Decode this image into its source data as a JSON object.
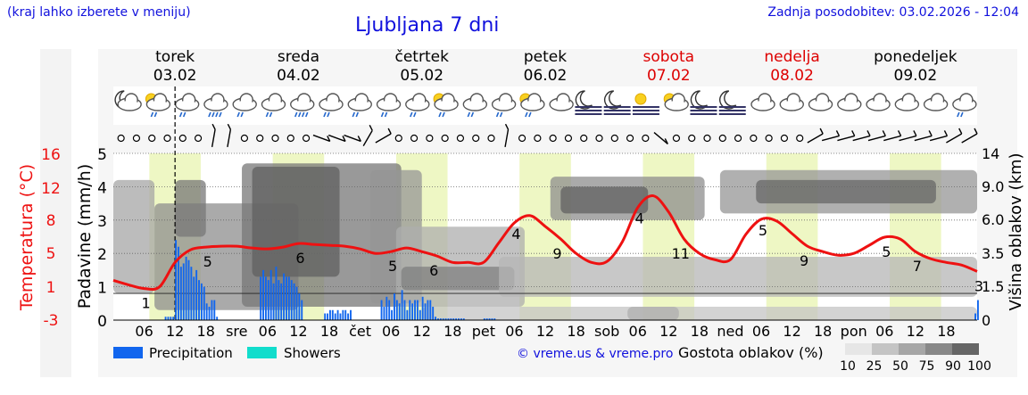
{
  "header": {
    "region_hint": "(kraj lahko izberete v meniju)",
    "title": "Ljubljana 7 dni",
    "updated": "Zadnja posodobitev: 03.02.2026 - 12:04"
  },
  "days": [
    {
      "name": "torek",
      "date": "03.02",
      "weekend": false
    },
    {
      "name": "sreda",
      "date": "04.02",
      "weekend": false
    },
    {
      "name": "četrtek",
      "date": "05.02",
      "weekend": false
    },
    {
      "name": "petek",
      "date": "06.02",
      "weekend": false
    },
    {
      "name": "sobota",
      "date": "07.02",
      "weekend": true
    },
    {
      "name": "nedelja",
      "date": "08.02",
      "weekend": true
    },
    {
      "name": "ponedeljek",
      "date": "09.02",
      "weekend": false
    }
  ],
  "weather_icons": [
    "moon-cloud",
    "sun-cloud-rain",
    "cloud-rain",
    "cloud-heavy-rain",
    "cloud-rain",
    "cloud-rain",
    "cloud-heavy-rain",
    "cloud-rain",
    "cloud-rain",
    "cloud-rain",
    "cloud-rain",
    "sun-cloud-rain",
    "cloud-rain",
    "cloud-rain",
    "sun-cloud-rain",
    "cloud",
    "moon-fog",
    "moon-fog",
    "sun-fog",
    "sun-cloud",
    "moon-fog",
    "moon-fog",
    "cloud",
    "cloud",
    "cloud",
    "cloud",
    "cloud",
    "cloud",
    "cloud",
    "cloud-rain"
  ],
  "wind_barbs": [
    "calm",
    "calm",
    "calm",
    "calm",
    "calm",
    "calm",
    "n",
    "n",
    "calm",
    "calm",
    "calm",
    "calm",
    "calm",
    "wsw",
    "wsw",
    "wsw",
    "nnw",
    "nw",
    "calm",
    "calm",
    "calm",
    "calm",
    "calm",
    "calm",
    "calm",
    "n",
    "calm",
    "calm",
    "calm",
    "calm",
    "calm",
    "calm",
    "calm",
    "calm",
    "calm",
    "sw",
    "calm",
    "calm",
    "calm",
    "calm",
    "calm",
    "calm",
    "calm",
    "calm",
    "calm",
    "nw",
    "w",
    "w",
    "w",
    "w",
    "w",
    "w",
    "w",
    "w",
    "nw",
    "nw"
  ],
  "colors": {
    "temperature_line": "#ee1111",
    "precipitation": "#1166ee",
    "showers": "#11ddcc",
    "weekend_text": "#dd0000",
    "title_text": "#1111dd",
    "daytime_band": "#eef7c4"
  },
  "legend": {
    "precip_label": "Precipitation",
    "showers_label": "Showers",
    "credit": "© vreme.us & vreme.pro",
    "cloud_label": "Gostota oblakov (%)",
    "cloud_ticks": [
      "10",
      "25",
      "50",
      "75",
      "90",
      "100"
    ]
  },
  "chart_data": {
    "type": "line",
    "x_unit": "hours from 03.02 00:00",
    "x_ticks": [
      "06",
      "12",
      "18",
      "sre",
      "06",
      "12",
      "18",
      "čet",
      "06",
      "12",
      "18",
      "pet",
      "06",
      "12",
      "18",
      "sob",
      "06",
      "12",
      "18",
      "ned",
      "06",
      "12",
      "18",
      "pon",
      "06",
      "12",
      "18"
    ],
    "y_left_outer_label": "Temperatura (°C)",
    "y_left_outer_ticks": [
      "16",
      "12",
      "8",
      "5",
      "1",
      "-3"
    ],
    "y_left_label": "Padavine (mm/h)",
    "y_left_ticks": [
      "0",
      "1",
      "2",
      "3",
      "4",
      "5"
    ],
    "y_left_range": [
      0,
      5
    ],
    "y_right_label": "Višina oblakov (km)",
    "y_right_ticks": [
      "0",
      "1.5",
      "3.5",
      "6.0",
      "9.0",
      "14"
    ],
    "now_marker_hour": 12,
    "series": [
      {
        "name": "Temperatura (°C)",
        "x": [
          0,
          3,
          6,
          9,
          12,
          15,
          18,
          21,
          24,
          27,
          30,
          33,
          36,
          39,
          42,
          45,
          48,
          51,
          54,
          57,
          60,
          63,
          66,
          69,
          72,
          75,
          78,
          81,
          84,
          87,
          90,
          93,
          96,
          99,
          102,
          105,
          108,
          111,
          114,
          117,
          120,
          123,
          126,
          129,
          132,
          135,
          138,
          141,
          144,
          147,
          150,
          153,
          156,
          159,
          162,
          165,
          168
        ],
        "values": [
          2.0,
          1.5,
          1.1,
          1.3,
          4.0,
          5.4,
          5.7,
          5.8,
          5.8,
          5.6,
          5.5,
          5.7,
          6.1,
          6.0,
          5.9,
          5.8,
          5.5,
          5.0,
          5.2,
          5.6,
          5.2,
          4.7,
          4.0,
          4.0,
          4.0,
          6.2,
          8.4,
          9.2,
          8.0,
          6.6,
          5.0,
          4.0,
          4.1,
          6.3,
          10.1,
          11.4,
          9.6,
          6.6,
          5.0,
          4.3,
          4.3,
          7.1,
          8.8,
          8.6,
          7.2,
          5.8,
          5.2,
          4.8,
          5.0,
          5.9,
          6.8,
          6.6,
          5.2,
          4.4,
          4.0,
          3.7,
          3.0
        ]
      },
      {
        "name": "Precipitation",
        "x": [
          10,
          10.5,
          11,
          11.5,
          12,
          12.5,
          13,
          13.5,
          14,
          14.5,
          15,
          15.5,
          16,
          16.5,
          17,
          17.5,
          18,
          18.5,
          19,
          19.5,
          20,
          20.5,
          28.5,
          29,
          29.5,
          30,
          30.5,
          31,
          31.5,
          32,
          32.5,
          33,
          33.5,
          34,
          34.5,
          35,
          35.5,
          36,
          36.5,
          41,
          41.5,
          42,
          42.5,
          43,
          43.5,
          44,
          44.5,
          45,
          45.5,
          46,
          52,
          52.5,
          53,
          53.5,
          54,
          54.5,
          55,
          55.5,
          56,
          56.5,
          57,
          57.5,
          58,
          58.5,
          59,
          59.5,
          60,
          60.5,
          61,
          61.5,
          62,
          62.5,
          63,
          63.5,
          64,
          64.5,
          65,
          65.5,
          66,
          66.5,
          67,
          67.5,
          68,
          72,
          72.5,
          73,
          73.5,
          74,
          167.5,
          168
        ],
        "values": [
          0.1,
          0.1,
          0.1,
          0.1,
          2.4,
          2.2,
          1.6,
          1.7,
          1.9,
          1.8,
          1.6,
          1.3,
          1.5,
          1.2,
          1.1,
          1.0,
          0.5,
          0.4,
          0.6,
          0.6,
          0.1,
          0.0,
          1.3,
          1.5,
          1.3,
          1.2,
          1.5,
          1.1,
          1.6,
          1.2,
          1.1,
          1.4,
          1.3,
          1.3,
          1.2,
          1.1,
          1.0,
          0.8,
          0.6,
          0.2,
          0.2,
          0.3,
          0.3,
          0.2,
          0.3,
          0.2,
          0.3,
          0.3,
          0.2,
          0.3,
          0.6,
          0.4,
          0.7,
          0.6,
          0.3,
          0.8,
          0.6,
          0.5,
          0.9,
          0.6,
          0.3,
          0.6,
          0.5,
          0.6,
          0.6,
          0.3,
          0.7,
          0.5,
          0.6,
          0.6,
          0.4,
          0.1,
          0.05,
          0.05,
          0.05,
          0.05,
          0.05,
          0.05,
          0.05,
          0.05,
          0.05,
          0.05,
          0.05,
          0.05,
          0.05,
          0.05,
          0.05,
          0.05,
          0.2,
          0.6
        ]
      }
    ],
    "temperature_labels": [
      {
        "x": 6,
        "text": "1"
      },
      {
        "x": 18,
        "text": "5"
      },
      {
        "x": 36,
        "text": "6"
      },
      {
        "x": 54,
        "text": "5"
      },
      {
        "x": 62,
        "text": "6"
      },
      {
        "x": 78,
        "text": "4"
      },
      {
        "x": 86,
        "text": "9"
      },
      {
        "x": 102,
        "text": "4"
      },
      {
        "x": 110,
        "text": "11"
      },
      {
        "x": 126,
        "text": "5"
      },
      {
        "x": 134,
        "text": "9"
      },
      {
        "x": 150,
        "text": "5"
      },
      {
        "x": 156,
        "text": "7"
      },
      {
        "x": 168,
        "text": "3"
      }
    ],
    "cloud_layers": [
      {
        "x1": 0,
        "x2": 8,
        "y1": 0.8,
        "y2": 4.2,
        "density": 45
      },
      {
        "x1": 8,
        "x2": 36,
        "y1": 0.3,
        "y2": 3.5,
        "density": 60
      },
      {
        "x1": 12,
        "x2": 18,
        "y1": 2.5,
        "y2": 4.2,
        "density": 75
      },
      {
        "x1": 25,
        "x2": 56,
        "y1": 0.4,
        "y2": 4.7,
        "density": 75
      },
      {
        "x1": 27,
        "x2": 44,
        "y1": 1.3,
        "y2": 4.6,
        "density": 90
      },
      {
        "x1": 50,
        "x2": 60,
        "y1": 0.5,
        "y2": 4.5,
        "density": 55
      },
      {
        "x1": 55,
        "x2": 80,
        "y1": 0.4,
        "y2": 2.8,
        "density": 40
      },
      {
        "x1": 56,
        "x2": 78,
        "y1": 0.9,
        "y2": 1.6,
        "density": 70
      },
      {
        "x1": 85,
        "x2": 115,
        "y1": 3.0,
        "y2": 4.3,
        "density": 60
      },
      {
        "x1": 87,
        "x2": 104,
        "y1": 3.2,
        "y2": 4.0,
        "density": 90
      },
      {
        "x1": 75,
        "x2": 168,
        "y1": 0.7,
        "y2": 1.9,
        "density": 35
      },
      {
        "x1": 118,
        "x2": 168,
        "y1": 3.2,
        "y2": 4.5,
        "density": 55
      },
      {
        "x1": 125,
        "x2": 160,
        "y1": 3.5,
        "y2": 4.2,
        "density": 85
      },
      {
        "x1": 100,
        "x2": 110,
        "y1": 0.0,
        "y2": 0.4,
        "density": 80
      },
      {
        "x1": 60,
        "x2": 168,
        "y1": 0.0,
        "y2": 0.4,
        "density": 25
      }
    ]
  }
}
